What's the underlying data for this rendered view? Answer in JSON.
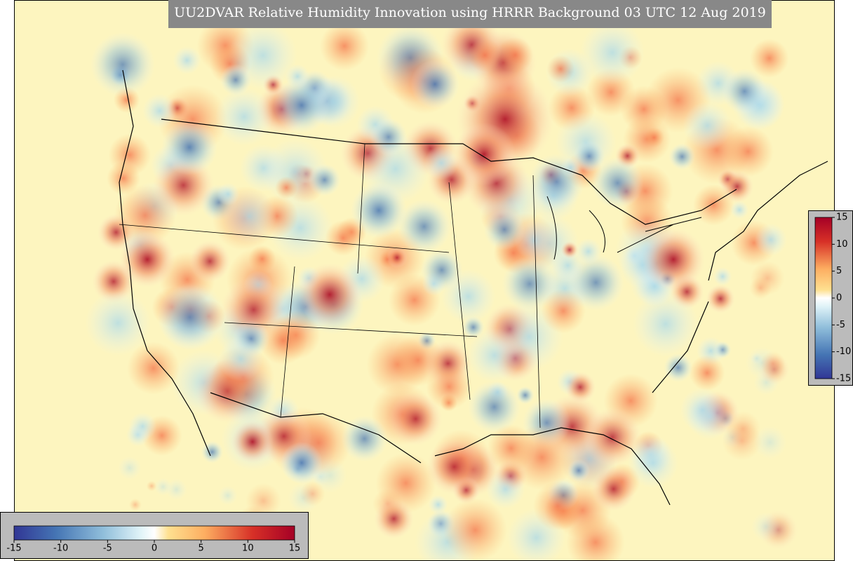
{
  "title": "UU2DVAR Relative Humidity Innovation using HRRR Background 03 UTC 12 Aug 2019",
  "colorbar": {
    "range": [
      -15,
      15
    ],
    "ticks": [
      -15,
      -10,
      -5,
      0,
      5,
      10,
      15
    ]
  }
}
